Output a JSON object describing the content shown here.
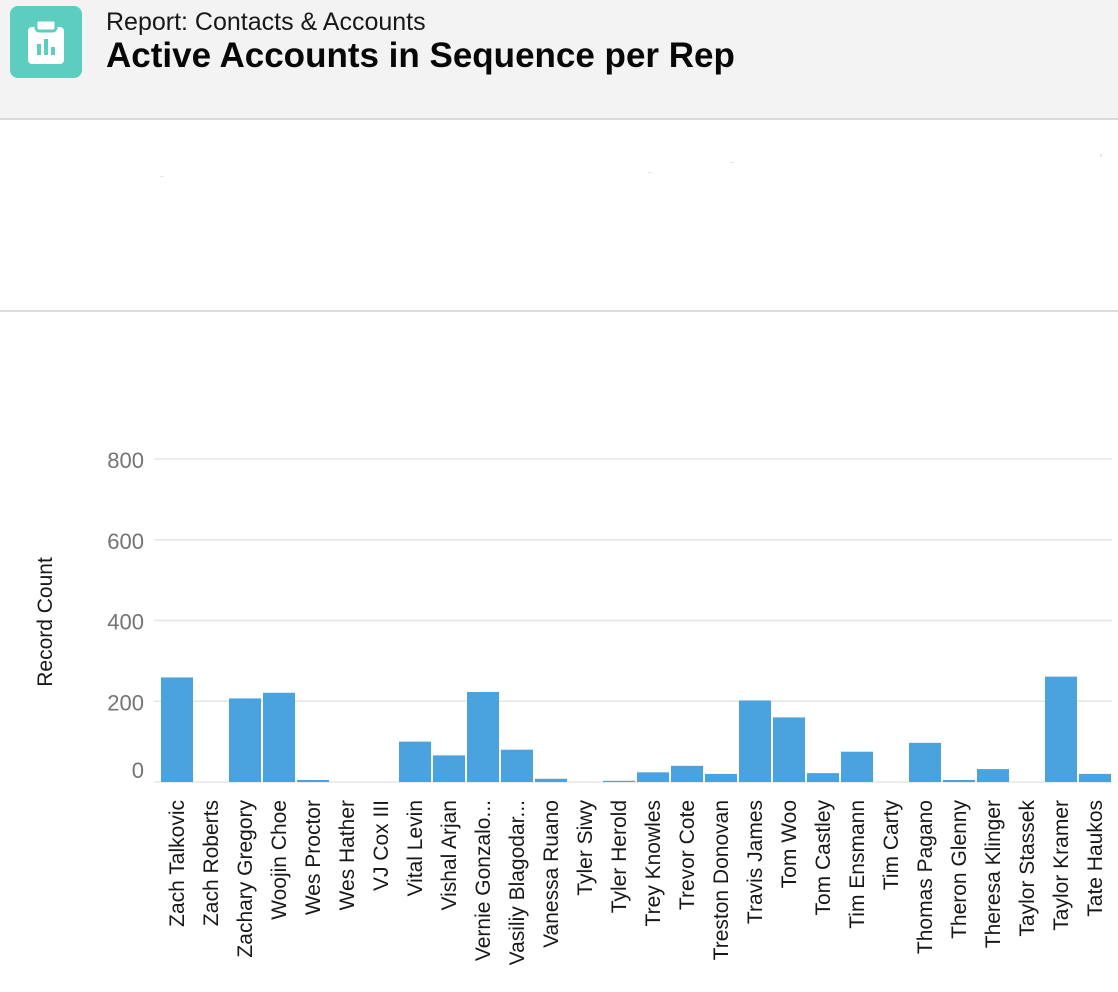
{
  "header": {
    "eyebrow": "Report: Contacts & Accounts",
    "title": "Active Accounts in Sequence per Rep",
    "icon": "report-icon"
  },
  "colors": {
    "bar": "#4aa3df",
    "header_bg": "#f3f3f3",
    "icon_bg": "#5ccdbf",
    "grid": "#e5e5e5"
  },
  "chart_data": {
    "type": "bar",
    "ylabel": "Record Count",
    "xlabel": "",
    "ylim": [
      0,
      800
    ],
    "yticks": [
      0,
      200,
      400,
      600,
      800
    ],
    "grid": true,
    "categories": [
      "Zach Talkovic",
      "Zach Roberts",
      "Zachary Gregory",
      "Woojin Choe",
      "Wes Proctor",
      "Wes Hather",
      "VJ Cox III",
      "Vital Levin",
      "Vishal Arjan",
      "Vernie Gonzalo...",
      "Vasiliy Blagodar...",
      "Vanessa Ruano",
      "Tyler Siwy",
      "Tyler Herold",
      "Trey Knowles",
      "Trevor Cote",
      "Treston Donovan",
      "Travis James",
      "Tom Woo",
      "Tom Castley",
      "Tim Ensmann",
      "Tim Carty",
      "Thomas Pagano",
      "Theron Glenny",
      "Theresa Klinger",
      "Taylor Stassek",
      "Taylor Kramer",
      "Tate Haukos"
    ],
    "values": [
      259,
      0,
      207,
      221,
      5,
      0,
      0,
      100,
      66,
      223,
      80,
      8,
      0,
      3,
      24,
      40,
      20,
      202,
      160,
      22,
      75,
      0,
      97,
      5,
      32,
      0,
      261,
      20
    ]
  }
}
